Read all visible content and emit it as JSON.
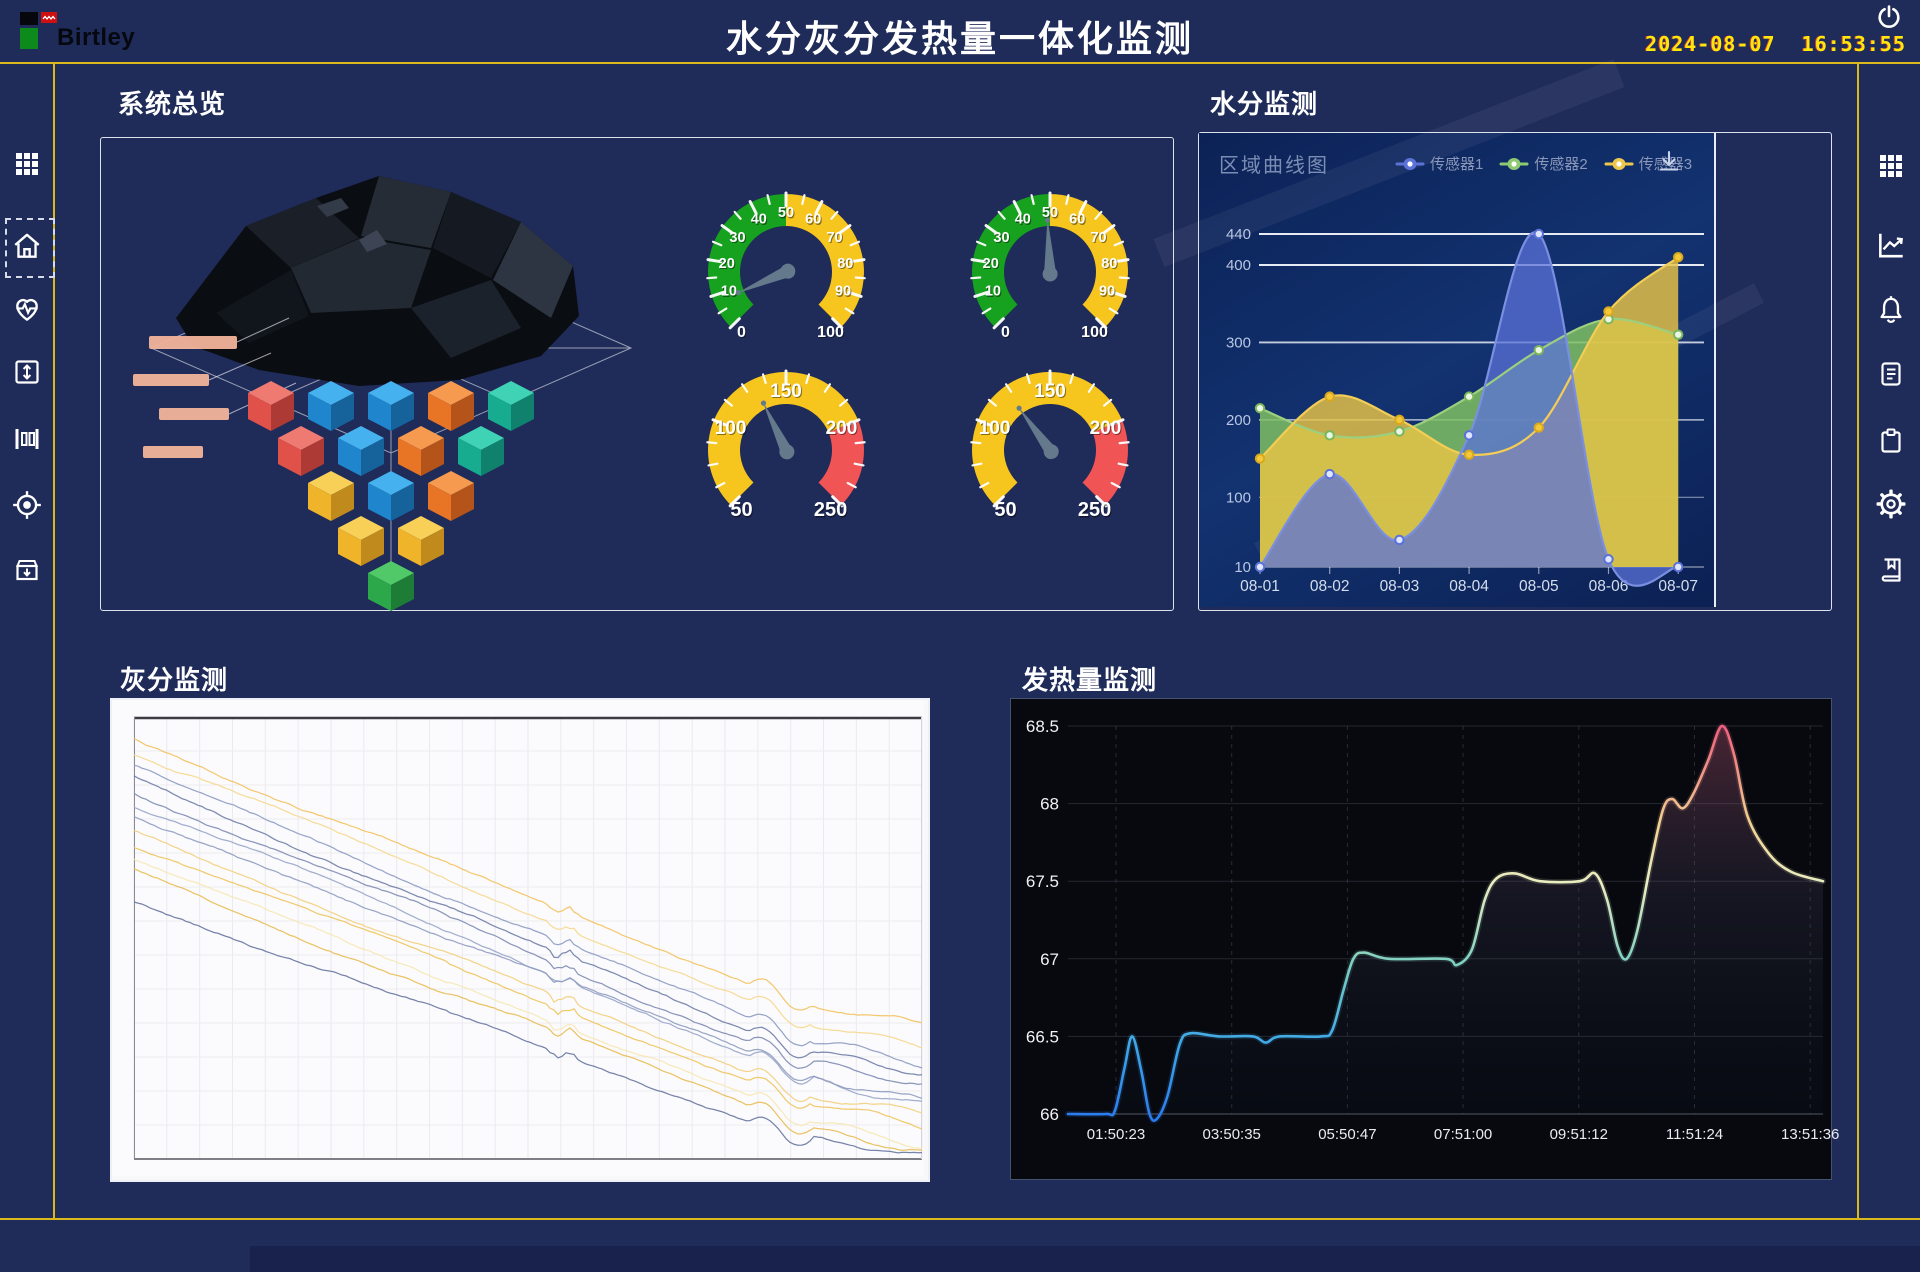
{
  "app": {
    "title": "水分灰分发热量一体化监测",
    "logo_text": "Birtley",
    "date": "2024-08-07",
    "time": "16:53:55"
  },
  "colors": {
    "accent_yellow": "#d9b91c",
    "bg": "#1f2b59",
    "clock_yellow": "#ffe60c",
    "gauge_green": "#16a11e",
    "gauge_yellow": "#f6c51e",
    "gauge_red": "#f05455",
    "sensor1_blue": "#5b72d8",
    "sensor2_green": "#8fc972",
    "sensor3_yellow": "#edc84d"
  },
  "sidebar_left": {
    "icons": [
      "apps-grid",
      "home",
      "health-pulse",
      "expand-vertical",
      "columns",
      "target",
      "archive-download"
    ],
    "active_index": 1
  },
  "sidebar_right": {
    "icons": [
      "apps-grid",
      "trend-chart",
      "alarm-bell",
      "document",
      "clipboard",
      "settings-gear",
      "logbook"
    ]
  },
  "panels": {
    "overview": {
      "title": "系统总览"
    },
    "moisture": {
      "title": "水分监测"
    },
    "ash": {
      "title": "灰分监测"
    },
    "heat": {
      "title": "发热量监测"
    }
  },
  "chart_data": [
    {
      "id": "moisture_area",
      "type": "area",
      "title": "区域曲线图",
      "categories": [
        "08-01",
        "08-02",
        "08-03",
        "08-04",
        "08-05",
        "08-06",
        "08-07"
      ],
      "series": [
        {
          "name": "传感器1",
          "color": "#5b72d8",
          "line": "#7b8fe0",
          "values": [
            10,
            130,
            45,
            180,
            440,
            20,
            10
          ]
        },
        {
          "name": "传感器2",
          "color": "#7fbf63",
          "line": "#9ccf7e",
          "values": [
            215,
            180,
            185,
            230,
            290,
            330,
            310
          ]
        },
        {
          "name": "传感器3",
          "color": "#e9c546",
          "line": "#f3cd55",
          "values": [
            150,
            230,
            200,
            155,
            190,
            340,
            410
          ]
        }
      ],
      "ylim": [
        10,
        460
      ],
      "yticks": [
        440,
        400,
        300,
        200,
        100,
        10
      ],
      "legend_position": "top-right",
      "has_download_icon": true,
      "grid": "horizontal"
    },
    {
      "id": "heat_line",
      "type": "line",
      "xticklabels": [
        "01:50:23",
        "03:50:35",
        "05:50:47",
        "07:51:00",
        "09:51:12",
        "11:51:24",
        "13:51:36"
      ],
      "yticks": [
        66,
        66.5,
        67,
        67.5,
        68,
        68.5
      ],
      "ylim": [
        66,
        68.5
      ],
      "points": [
        [
          0,
          66
        ],
        [
          0.05,
          66
        ],
        [
          0.062,
          66.02
        ],
        [
          0.075,
          66.3
        ],
        [
          0.085,
          66.5
        ],
        [
          0.097,
          66.28
        ],
        [
          0.108,
          66.0
        ],
        [
          0.118,
          65.97
        ],
        [
          0.132,
          66.12
        ],
        [
          0.148,
          66.45
        ],
        [
          0.162,
          66.52
        ],
        [
          0.2,
          66.5
        ],
        [
          0.245,
          66.5
        ],
        [
          0.262,
          66.46
        ],
        [
          0.28,
          66.5
        ],
        [
          0.335,
          66.5
        ],
        [
          0.35,
          66.54
        ],
        [
          0.365,
          66.8
        ],
        [
          0.378,
          67.0
        ],
        [
          0.392,
          67.04
        ],
        [
          0.425,
          67.0
        ],
        [
          0.5,
          67.0
        ],
        [
          0.515,
          66.96
        ],
        [
          0.535,
          67.06
        ],
        [
          0.552,
          67.38
        ],
        [
          0.568,
          67.52
        ],
        [
          0.592,
          67.55
        ],
        [
          0.625,
          67.5
        ],
        [
          0.678,
          67.5
        ],
        [
          0.698,
          67.55
        ],
        [
          0.714,
          67.38
        ],
        [
          0.728,
          67.08
        ],
        [
          0.74,
          67.0
        ],
        [
          0.754,
          67.18
        ],
        [
          0.772,
          67.62
        ],
        [
          0.788,
          67.96
        ],
        [
          0.8,
          68.03
        ],
        [
          0.814,
          67.97
        ],
        [
          0.828,
          68.06
        ],
        [
          0.848,
          68.28
        ],
        [
          0.866,
          68.5
        ],
        [
          0.882,
          68.32
        ],
        [
          0.9,
          67.92
        ],
        [
          0.928,
          67.68
        ],
        [
          0.958,
          67.56
        ],
        [
          1,
          67.5
        ]
      ],
      "line_gradient": [
        "#2b7bf0",
        "#3fa9e8",
        "#7fd0c0",
        "#e9eec2",
        "#f2d392",
        "#ef5f7e"
      ],
      "grid": "dashed-vertical solid-horizontal"
    },
    {
      "id": "ash_lines",
      "type": "line",
      "description": "12 unlabeled noisy descending traces on white grid, no axis labels visible",
      "lines": [
        {
          "color": "#f3c260",
          "y0": 0.05,
          "y1": 0.7
        },
        {
          "color": "#f6d88e",
          "y0": 0.08,
          "y1": 0.74
        },
        {
          "color": "#8d9bc2",
          "y0": 0.11,
          "y1": 0.78
        },
        {
          "color": "#6f7ca6",
          "y0": 0.14,
          "y1": 0.81
        },
        {
          "color": "#7e8bb2",
          "y0": 0.17,
          "y1": 0.84
        },
        {
          "color": "#98a5c8",
          "y0": 0.2,
          "y1": 0.87
        },
        {
          "color": "#8f9cc0",
          "y0": 0.23,
          "y1": 0.86
        },
        {
          "color": "#f2cf7d",
          "y0": 0.26,
          "y1": 0.9
        },
        {
          "color": "#eec45e",
          "y0": 0.29,
          "y1": 0.93
        },
        {
          "color": "#f7e7b4",
          "y0": 0.32,
          "y1": 0.96
        },
        {
          "color": "#e9bd55",
          "y0": 0.35,
          "y1": 0.98
        },
        {
          "color": "#68759e",
          "y0": 0.42,
          "y1": 1.0
        }
      ]
    },
    {
      "id": "gauges",
      "type": "gauge",
      "items": [
        {
          "min": 0,
          "max": 100,
          "value": 8,
          "labels": [
            0,
            10,
            20,
            30,
            40,
            50,
            60,
            70,
            80,
            90,
            100
          ],
          "minor_step": 5,
          "bands": [
            [
              0,
              50,
              "#16a11e"
            ],
            [
              50,
              100,
              "#f6c51e"
            ]
          ],
          "label_font": 14.5,
          "end_font": 16
        },
        {
          "min": 0,
          "max": 100,
          "value": 49,
          "labels": [
            0,
            10,
            20,
            30,
            40,
            50,
            60,
            70,
            80,
            90,
            100
          ],
          "minor_step": 5,
          "bands": [
            [
              0,
              50,
              "#16a11e"
            ],
            [
              50,
              100,
              "#f6c51e"
            ]
          ],
          "label_font": 14.5,
          "end_font": 16
        },
        {
          "min": 50,
          "max": 250,
          "value": 131,
          "labels": [
            50,
            100,
            150,
            200,
            250
          ],
          "minor_step": 12.5,
          "bands": [
            [
              50,
              200,
              "#f6c51e"
            ],
            [
              200,
              250,
              "#f05455"
            ]
          ],
          "label_font": 19,
          "end_font": 20
        },
        {
          "min": 50,
          "max": 250,
          "value": 123,
          "labels": [
            50,
            100,
            150,
            200,
            250
          ],
          "minor_step": 12.5,
          "bands": [
            [
              50,
              200,
              "#f6c51e"
            ],
            [
              200,
              250,
              "#f05455"
            ]
          ],
          "label_font": 19,
          "end_font": 20
        }
      ]
    }
  ]
}
